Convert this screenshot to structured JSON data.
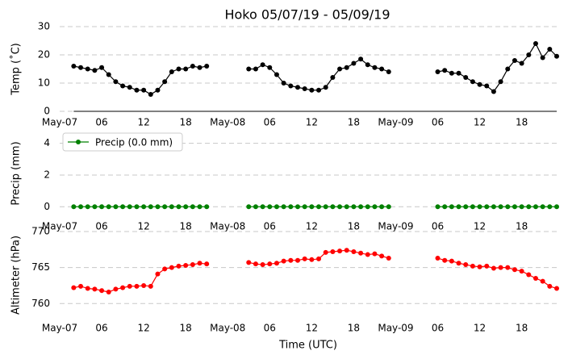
{
  "chart_data": [
    {
      "type": "line",
      "title": "Hoko 05/07/19 - 05/09/19",
      "ylabel": "Temp (˚C)",
      "x": [
        2,
        3,
        4,
        5,
        6,
        7,
        8,
        9,
        10,
        11,
        12,
        13,
        14,
        15,
        16,
        17,
        18,
        19,
        20,
        21,
        22,
        23,
        24,
        25,
        26,
        27,
        28,
        29,
        30,
        31,
        32,
        33,
        34,
        35,
        36,
        37,
        38,
        39,
        40,
        41,
        42,
        43,
        44,
        45,
        46,
        47,
        48,
        49,
        50,
        51,
        52,
        53,
        54,
        55,
        56,
        57,
        58,
        59,
        60,
        61,
        62,
        63,
        64,
        65,
        66,
        67,
        68,
        69,
        70,
        71
      ],
      "series": [
        {
          "color": "#000000",
          "values": [
            16,
            15.5,
            15,
            14.5,
            15.5,
            13,
            10.5,
            9,
            8.5,
            7.5,
            7.5,
            6,
            7.5,
            10.5,
            14,
            15,
            15,
            16,
            15.5,
            16,
            null,
            null,
            null,
            null,
            null,
            15,
            15,
            16.5,
            15.5,
            13,
            10,
            9,
            8.5,
            8,
            7.5,
            7.5,
            8.5,
            12,
            15,
            15.5,
            17,
            18.5,
            16.5,
            15.5,
            15,
            14,
            null,
            null,
            null,
            null,
            null,
            null,
            14,
            14.5,
            13.5,
            13.5,
            12,
            10.5,
            9.5,
            9,
            7,
            10.5,
            15,
            18,
            17,
            20,
            24,
            19,
            22,
            19.5
          ]
        }
      ],
      "xlim": [
        0,
        71
      ],
      "xticks": [
        {
          "value": 0,
          "label": "May-07"
        },
        {
          "value": 6,
          "label": "06"
        },
        {
          "value": 12,
          "label": "12"
        },
        {
          "value": 18,
          "label": "18"
        },
        {
          "value": 24,
          "label": "May-08"
        },
        {
          "value": 30,
          "label": "06"
        },
        {
          "value": 36,
          "label": "12"
        },
        {
          "value": 42,
          "label": "18"
        },
        {
          "value": 48,
          "label": "May-09"
        },
        {
          "value": 54,
          "label": "06"
        },
        {
          "value": 60,
          "label": "12"
        },
        {
          "value": 66,
          "label": "18"
        }
      ],
      "ylim": [
        0,
        30
      ],
      "yticks": [
        0,
        10,
        20,
        30
      ],
      "grid": true
    },
    {
      "type": "line",
      "ylabel": "Precip (mm)",
      "legend": "upper left",
      "x": [
        2,
        3,
        4,
        5,
        6,
        7,
        8,
        9,
        10,
        11,
        12,
        13,
        14,
        15,
        16,
        17,
        18,
        19,
        20,
        21,
        22,
        23,
        24,
        25,
        26,
        27,
        28,
        29,
        30,
        31,
        32,
        33,
        34,
        35,
        36,
        37,
        38,
        39,
        40,
        41,
        42,
        43,
        44,
        45,
        46,
        47,
        48,
        49,
        50,
        51,
        52,
        53,
        54,
        55,
        56,
        57,
        58,
        59,
        60,
        61,
        62,
        63,
        64,
        65,
        66,
        67,
        68,
        69,
        70,
        71
      ],
      "series": [
        {
          "name": "Precip (0.0 mm)",
          "color": "#008000",
          "values": [
            0,
            0,
            0,
            0,
            0,
            0,
            0,
            0,
            0,
            0,
            0,
            0,
            0,
            0,
            0,
            0,
            0,
            0,
            0,
            0,
            null,
            null,
            null,
            null,
            null,
            0,
            0,
            0,
            0,
            0,
            0,
            0,
            0,
            0,
            0,
            0,
            0,
            0,
            0,
            0,
            0,
            0,
            0,
            0,
            0,
            0,
            null,
            null,
            null,
            null,
            null,
            null,
            0,
            0,
            0,
            0,
            0,
            0,
            0,
            0,
            0,
            0,
            0,
            0,
            0,
            0,
            0,
            0,
            0,
            0
          ]
        }
      ],
      "xlim": [
        0,
        71
      ],
      "xticks": [
        {
          "value": 0,
          "label": "May-07"
        },
        {
          "value": 6,
          "label": "06"
        },
        {
          "value": 12,
          "label": "12"
        },
        {
          "value": 18,
          "label": "18"
        },
        {
          "value": 24,
          "label": "May-08"
        },
        {
          "value": 30,
          "label": "06"
        },
        {
          "value": 36,
          "label": "12"
        },
        {
          "value": 42,
          "label": "18"
        },
        {
          "value": 48,
          "label": "May-09"
        },
        {
          "value": 54,
          "label": "06"
        },
        {
          "value": 60,
          "label": "12"
        },
        {
          "value": 66,
          "label": "18"
        }
      ],
      "ylim": [
        -0.7,
        4.9
      ],
      "yticks": [
        0,
        2,
        4
      ],
      "grid": true
    },
    {
      "type": "line",
      "ylabel": "Altimeter (hPa)",
      "xlabel": "Time (UTC)",
      "x": [
        2,
        3,
        4,
        5,
        6,
        7,
        8,
        9,
        10,
        11,
        12,
        13,
        14,
        15,
        16,
        17,
        18,
        19,
        20,
        21,
        22,
        23,
        24,
        25,
        26,
        27,
        28,
        29,
        30,
        31,
        32,
        33,
        34,
        35,
        36,
        37,
        38,
        39,
        40,
        41,
        42,
        43,
        44,
        45,
        46,
        47,
        48,
        49,
        50,
        51,
        52,
        53,
        54,
        55,
        56,
        57,
        58,
        59,
        60,
        61,
        62,
        63,
        64,
        65,
        66,
        67,
        68,
        69,
        70,
        71
      ],
      "series": [
        {
          "color": "#ff0000",
          "values": [
            762.2,
            762.4,
            762.1,
            762,
            761.8,
            761.6,
            762,
            762.2,
            762.4,
            762.4,
            762.5,
            762.4,
            764.1,
            764.8,
            765,
            765.2,
            765.3,
            765.4,
            765.6,
            765.5,
            null,
            null,
            null,
            null,
            null,
            765.7,
            765.5,
            765.4,
            765.5,
            765.6,
            765.9,
            766,
            766,
            766.2,
            766.1,
            766.2,
            767.1,
            767.2,
            767.3,
            767.4,
            767.2,
            767,
            766.8,
            766.9,
            766.6,
            766.3,
            null,
            null,
            null,
            null,
            null,
            null,
            766.3,
            766,
            765.9,
            765.6,
            765.4,
            765.2,
            765.1,
            765.2,
            764.9,
            765,
            765,
            764.7,
            764.5,
            764,
            763.5,
            763.1,
            762.4,
            762.1
          ]
        }
      ],
      "xlim": [
        0,
        71
      ],
      "xticks": [
        {
          "value": 0,
          "label": "May-07"
        },
        {
          "value": 6,
          "label": "06"
        },
        {
          "value": 12,
          "label": "12"
        },
        {
          "value": 18,
          "label": "18"
        },
        {
          "value": 24,
          "label": "May-08"
        },
        {
          "value": 30,
          "label": "06"
        },
        {
          "value": 36,
          "label": "12"
        },
        {
          "value": 42,
          "label": "18"
        },
        {
          "value": 48,
          "label": "May-09"
        },
        {
          "value": 54,
          "label": "06"
        },
        {
          "value": 60,
          "label": "12"
        },
        {
          "value": 66,
          "label": "18"
        }
      ],
      "ylim": [
        757.9,
        770
      ],
      "yticks": [
        760,
        765,
        770
      ],
      "grid": true
    }
  ]
}
